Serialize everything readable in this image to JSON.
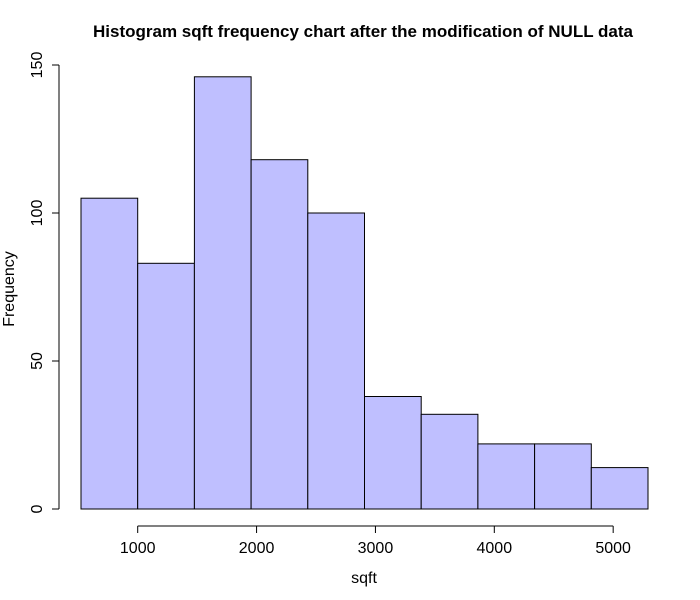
{
  "chart_data": {
    "type": "bar",
    "title": "Histogram sqft frequency chart after the modification of NULL data",
    "xlabel": "sqft",
    "ylabel": "Frequency",
    "bin_edges": [
      523,
      1000,
      1477,
      1954,
      2431,
      2908,
      3385,
      3862,
      4339,
      4816,
      5293
    ],
    "values": [
      105,
      83,
      146,
      118,
      100,
      38,
      32,
      22,
      22,
      14
    ],
    "xticks": [
      1000,
      2000,
      3000,
      4000,
      5000
    ],
    "yticks": [
      0,
      50,
      100,
      150
    ],
    "xlim": [
      523,
      5293
    ],
    "ylim": [
      0,
      150
    ],
    "bar_color": "#bfbfff",
    "grid": false,
    "legend": "none"
  }
}
